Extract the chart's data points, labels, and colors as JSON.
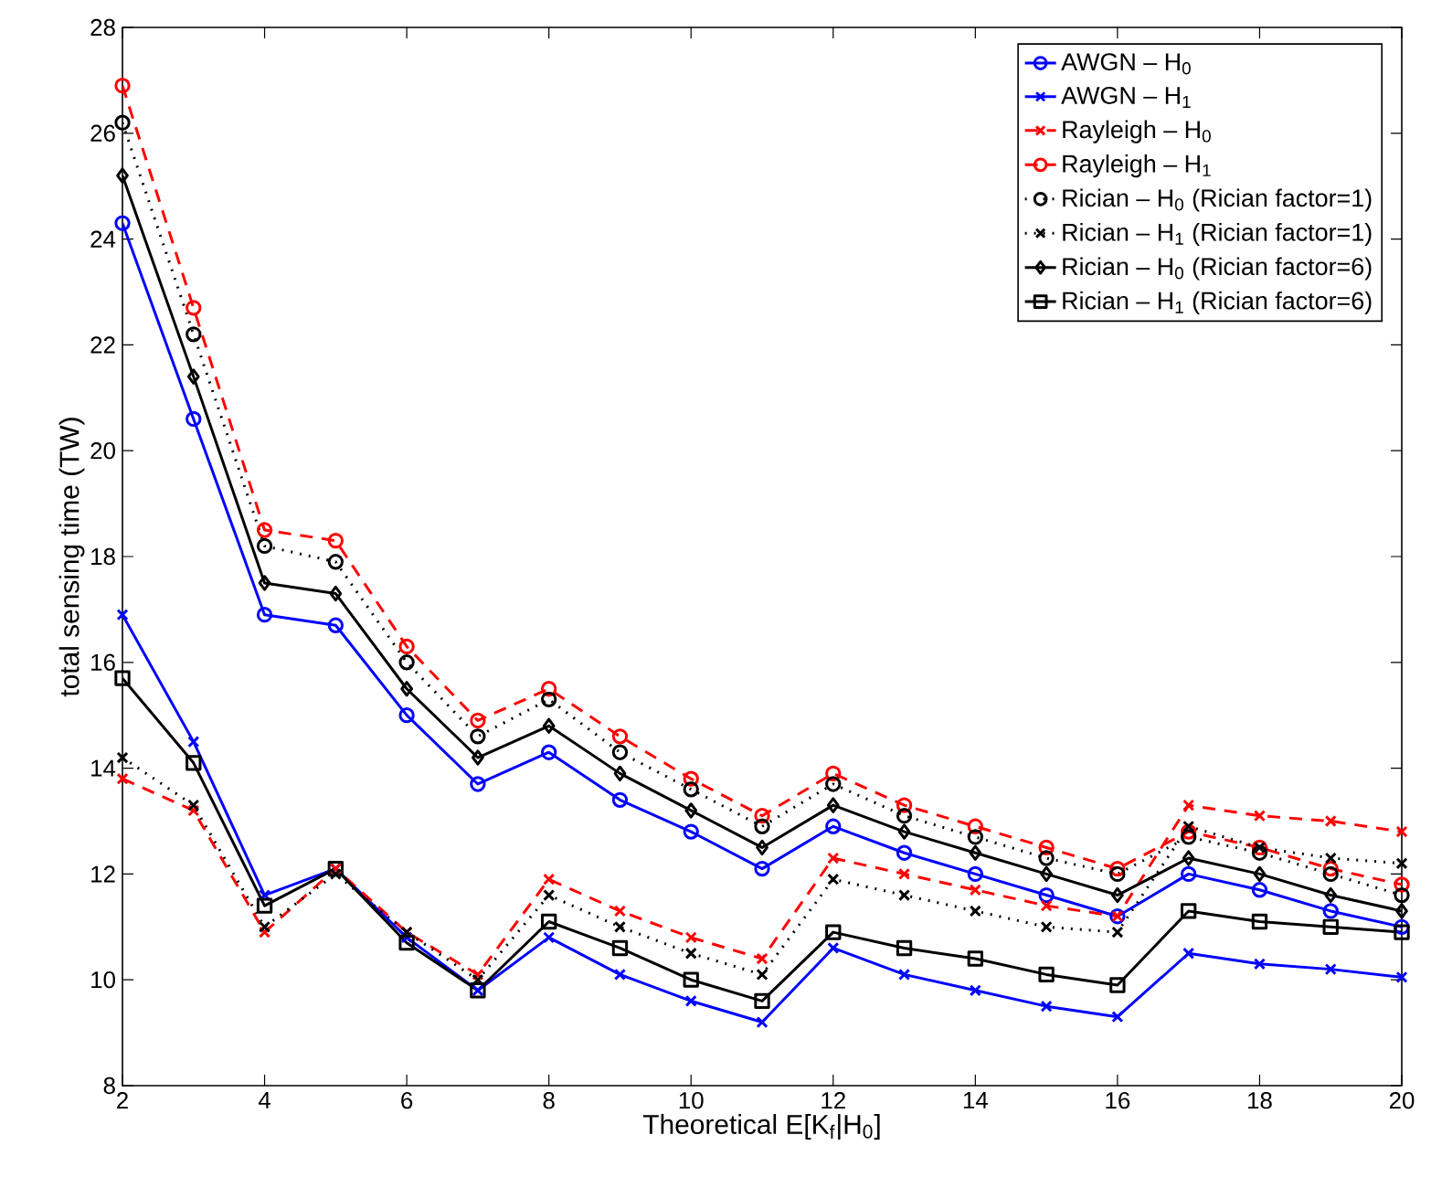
{
  "chart_data": {
    "type": "line",
    "xlabel": "Theoretical E[K$_{f}$|H$_{0}$]",
    "ylabel": "total sensing time (TW)",
    "x": [
      2,
      3,
      4,
      5,
      6,
      7,
      8,
      9,
      10,
      11,
      12,
      13,
      14,
      15,
      16,
      17,
      18,
      19,
      20
    ],
    "xlim": [
      2,
      20
    ],
    "ylim": [
      8,
      28
    ],
    "xticks": [
      2,
      4,
      6,
      8,
      10,
      12,
      14,
      16,
      18,
      20
    ],
    "yticks": [
      8,
      10,
      12,
      14,
      16,
      18,
      20,
      22,
      24,
      26,
      28
    ],
    "grid": false,
    "legend": "top right",
    "series": [
      {
        "name": "AWGN – H$_{0}$",
        "color": "#0000ff",
        "marker": "circle",
        "line_style": "solid",
        "values": [
          24.3,
          20.6,
          16.9,
          16.7,
          15.0,
          13.7,
          14.3,
          13.4,
          12.8,
          12.1,
          12.9,
          12.4,
          12.0,
          11.6,
          11.2,
          12.0,
          11.7,
          11.3,
          11.0
        ]
      },
      {
        "name": "AWGN – H$_{1}$",
        "color": "#0000ff",
        "marker": "cross",
        "line_style": "solid",
        "values": [
          16.9,
          14.5,
          11.6,
          12.1,
          10.8,
          9.8,
          10.8,
          10.1,
          9.6,
          9.2,
          10.6,
          10.1,
          9.8,
          9.5,
          9.3,
          10.5,
          10.3,
          10.2,
          10.05
        ]
      },
      {
        "name": "Rayleigh – H$_{0}$",
        "color": "#ff0000",
        "marker": "cross",
        "line_style": "dashed",
        "values": [
          13.8,
          13.2,
          10.9,
          12.1,
          10.9,
          10.1,
          11.9,
          11.3,
          10.8,
          10.4,
          12.3,
          12.0,
          11.7,
          11.4,
          11.2,
          13.3,
          13.1,
          13.0,
          12.8
        ]
      },
      {
        "name": "Rayleigh – H$_{1}$",
        "color": "#ff0000",
        "marker": "circle",
        "line_style": "dashed",
        "values": [
          26.9,
          22.7,
          18.5,
          18.3,
          16.3,
          14.9,
          15.5,
          14.6,
          13.8,
          13.1,
          13.9,
          13.3,
          12.9,
          12.5,
          12.1,
          12.8,
          12.5,
          12.1,
          11.8
        ]
      },
      {
        "name": "Rician – H$_{0}$  (Rician factor=1)",
        "color": "#000000",
        "marker": "circle",
        "line_style": "dotted",
        "values": [
          26.2,
          22.2,
          18.2,
          17.9,
          16.0,
          14.6,
          15.3,
          14.3,
          13.6,
          12.9,
          13.7,
          13.1,
          12.7,
          12.3,
          12.0,
          12.7,
          12.4,
          12.0,
          11.6
        ]
      },
      {
        "name": "Rician – H$_{1}$  (Rician factor=1)",
        "color": "#000000",
        "marker": "cross",
        "line_style": "dotted",
        "values": [
          14.2,
          13.3,
          11.0,
          12.0,
          10.9,
          10.0,
          11.6,
          11.0,
          10.5,
          10.1,
          11.9,
          11.6,
          11.3,
          11.0,
          10.9,
          12.9,
          12.5,
          12.3,
          12.2
        ]
      },
      {
        "name": "Rician – H$_{0}$  (Rician factor=6)",
        "color": "#000000",
        "marker": "diamond",
        "line_style": "solid",
        "values": [
          25.2,
          21.4,
          17.5,
          17.3,
          15.5,
          14.2,
          14.8,
          13.9,
          13.2,
          12.5,
          13.3,
          12.8,
          12.4,
          12.0,
          11.6,
          12.3,
          12.0,
          11.6,
          11.3
        ]
      },
      {
        "name": "Rician – H$_{1}$  (Rician factor=6)",
        "color": "#000000",
        "marker": "square",
        "line_style": "solid",
        "values": [
          15.7,
          14.1,
          11.4,
          12.1,
          10.7,
          9.8,
          11.1,
          10.6,
          10.0,
          9.6,
          10.9,
          10.6,
          10.4,
          10.1,
          9.9,
          11.3,
          11.1,
          11.0,
          10.9
        ]
      }
    ]
  }
}
